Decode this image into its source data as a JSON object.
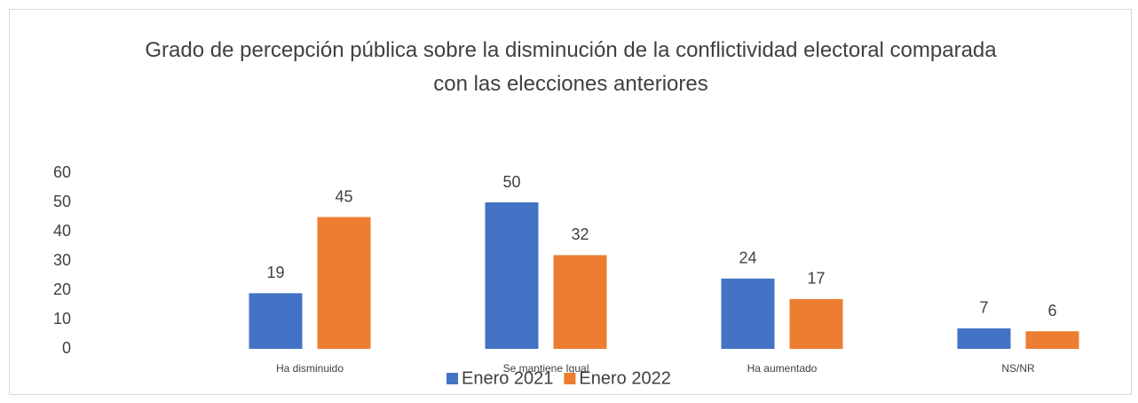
{
  "chart_data": {
    "type": "bar",
    "title": "Grado de percepción pública sobre la disminución de la conflictividad electoral comparada con las elecciones anteriores",
    "categories": [
      "Ha disminuido",
      "Se mantiene Igual",
      "Ha aumentado",
      "NS/NR"
    ],
    "series": [
      {
        "name": "Enero 2021",
        "color": "#4472c4",
        "values": [
          19,
          50,
          24,
          7
        ]
      },
      {
        "name": "Enero 2022",
        "color": "#ed7d31",
        "values": [
          45,
          32,
          17,
          6
        ]
      }
    ],
    "ylim": [
      0,
      60
    ],
    "yticks": [
      0,
      10,
      20,
      30,
      40,
      50,
      60
    ],
    "grid": false,
    "legend": "bottom"
  }
}
